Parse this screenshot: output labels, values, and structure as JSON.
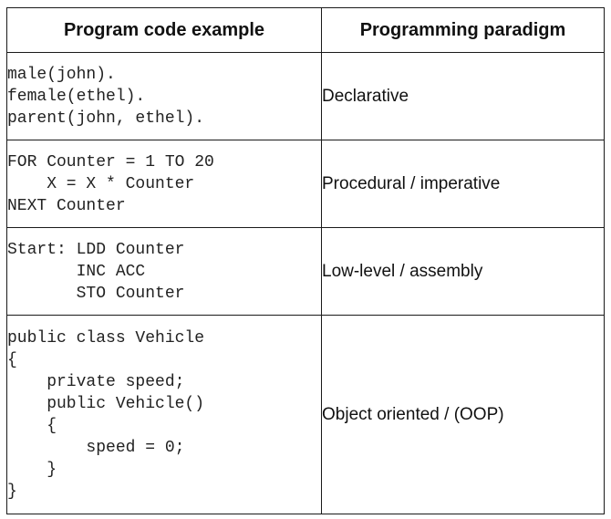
{
  "table": {
    "headers": {
      "code": "Program code example",
      "paradigm": "Programming paradigm"
    },
    "rows": [
      {
        "code": "male(john).\nfemale(ethel).\nparent(john, ethel).",
        "paradigm": "Declarative"
      },
      {
        "code": "FOR Counter = 1 TO 20\n    X = X * Counter\nNEXT Counter",
        "paradigm": "Procedural / imperative"
      },
      {
        "code": "Start: LDD Counter\n       INC ACC\n       STO Counter",
        "paradigm": "Low-level / assembly"
      },
      {
        "code": "public class Vehicle\n{\n    private speed;\n    public Vehicle()\n    {\n        speed = 0;\n    }\n}",
        "paradigm": "Object oriented / (OOP)"
      }
    ]
  }
}
